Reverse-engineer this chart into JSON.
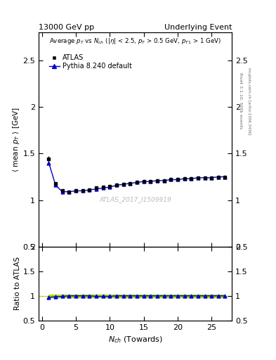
{
  "title_left": "13000 GeV pp",
  "title_right": "Underlying Event",
  "watermark": "ATLAS_2017_I1509919",
  "right_label": "Rivet 3.1.10, 500k events",
  "right_label2": "mcplots.cern.ch [arXiv:1306.3436]",
  "xlabel": "N_{ch} (Towards)",
  "ylabel": "\\u27e8 mean p_{T} \\u27e9 [GeV]",
  "ylabel_ratio": "Ratio to ATLAS",
  "ylim": [
    0.5,
    2.8
  ],
  "ylim_ratio": [
    0.5,
    2.0
  ],
  "yticks": [
    0.5,
    1.0,
    1.5,
    2.0,
    2.5
  ],
  "yticks_ratio": [
    0.5,
    1.0,
    1.5,
    2.0
  ],
  "xlim": [
    -0.5,
    28
  ],
  "atlas_x": [
    1,
    2,
    3,
    4,
    5,
    6,
    7,
    8,
    9,
    10,
    11,
    12,
    13,
    14,
    15,
    16,
    17,
    18,
    19,
    20,
    21,
    22,
    23,
    24,
    25,
    26,
    27
  ],
  "atlas_y": [
    1.44,
    1.18,
    1.1,
    1.09,
    1.1,
    1.1,
    1.11,
    1.13,
    1.14,
    1.15,
    1.16,
    1.17,
    1.18,
    1.19,
    1.2,
    1.2,
    1.21,
    1.21,
    1.22,
    1.22,
    1.23,
    1.23,
    1.24,
    1.24,
    1.24,
    1.25,
    1.25
  ],
  "atlas_yerr": [
    0.03,
    0.01,
    0.005,
    0.005,
    0.005,
    0.005,
    0.005,
    0.005,
    0.005,
    0.005,
    0.005,
    0.005,
    0.005,
    0.005,
    0.005,
    0.005,
    0.005,
    0.005,
    0.005,
    0.005,
    0.005,
    0.005,
    0.005,
    0.005,
    0.005,
    0.005,
    0.005
  ],
  "pythia_x": [
    1,
    2,
    3,
    4,
    5,
    6,
    7,
    8,
    9,
    10,
    11,
    12,
    13,
    14,
    15,
    16,
    17,
    18,
    19,
    20,
    21,
    22,
    23,
    24,
    25,
    26,
    27
  ],
  "pythia_y": [
    1.4,
    1.16,
    1.09,
    1.09,
    1.1,
    1.1,
    1.11,
    1.12,
    1.13,
    1.14,
    1.16,
    1.17,
    1.18,
    1.19,
    1.2,
    1.2,
    1.21,
    1.21,
    1.22,
    1.22,
    1.23,
    1.23,
    1.24,
    1.24,
    1.24,
    1.25,
    1.25
  ],
  "ratio_pythia_y": [
    0.97,
    0.98,
    0.99,
    1.0,
    1.0,
    1.0,
    1.0,
    0.99,
    0.99,
    0.99,
    1.0,
    1.0,
    1.0,
    1.0,
    1.0,
    1.0,
    1.0,
    1.0,
    1.0,
    1.0,
    1.0,
    1.0,
    1.0,
    1.0,
    1.0,
    1.0,
    1.0
  ],
  "atlas_color": "black",
  "pythia_color": "#0000cc",
  "ratio_band_color": "#aadd00",
  "bg_color": "#ffffff",
  "xticks": [
    0,
    5,
    10,
    15,
    20,
    25
  ]
}
